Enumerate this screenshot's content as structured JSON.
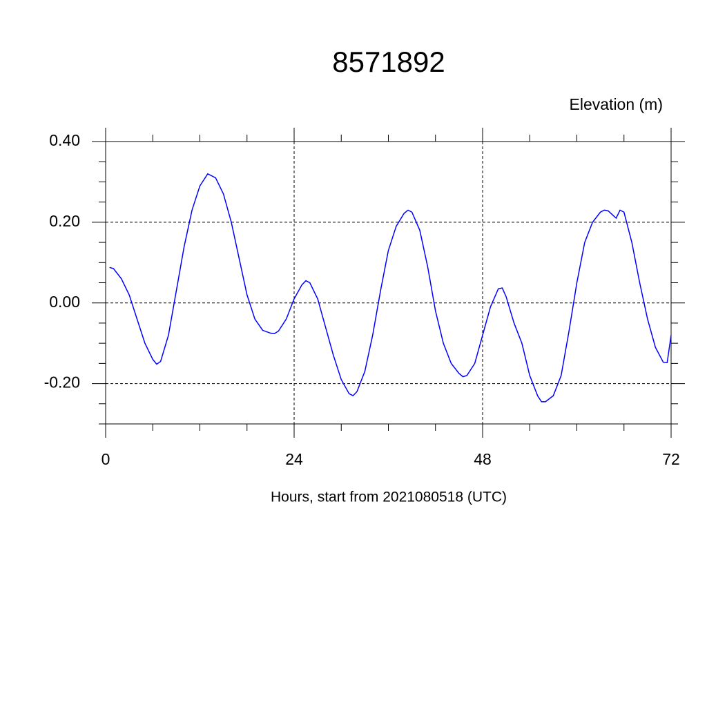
{
  "chart_data": {
    "type": "line",
    "title": "8571892",
    "subtitle": "Elevation (m)",
    "x_label": "Hours, start from 2021080518 (UTC)",
    "xlim": [
      0,
      72
    ],
    "ylim": [
      -0.3,
      0.4
    ],
    "xticks": [
      0,
      24,
      48,
      72
    ],
    "xminorticks": [
      6,
      12,
      18,
      30,
      36,
      42,
      54,
      60,
      66
    ],
    "yticks": [
      {
        "value": -0.2,
        "label": "-0.20"
      },
      {
        "value": 0,
        "label": "0.00"
      },
      {
        "value": 0.2,
        "label": "0.20"
      },
      {
        "value": 0.4,
        "label": "0.40"
      }
    ],
    "yminorticks": [
      -0.3,
      -0.25,
      -0.15,
      -0.1,
      -0.05,
      0.05,
      0.1,
      0.15,
      0.25,
      0.3,
      0.35
    ],
    "grid": true,
    "x": [
      0.5,
      1,
      2,
      3,
      4,
      5,
      6,
      6.5,
      7,
      8,
      9,
      10,
      11,
      12,
      13,
      14,
      15,
      16,
      17,
      18,
      19,
      20,
      21,
      21.5,
      22,
      23,
      24,
      25,
      25.5,
      26,
      27,
      28,
      29,
      30,
      31,
      31.5,
      32,
      33,
      34,
      35,
      36,
      37,
      38,
      38.5,
      39,
      40,
      41,
      42,
      43,
      44,
      45,
      45.5,
      46,
      47,
      48,
      49,
      50,
      50.5,
      51,
      52,
      53,
      54,
      55,
      55.5,
      56,
      57,
      58,
      59,
      60,
      61,
      62,
      63,
      63.5,
      64,
      65,
      65.5,
      66,
      67,
      68,
      69,
      70,
      71,
      71.5,
      72
    ],
    "series": [
      {
        "name": "Elevation",
        "color": "#0000ff",
        "values": [
          0.088,
          0.085,
          0.06,
          0.02,
          -0.04,
          -0.1,
          -0.14,
          -0.152,
          -0.145,
          -0.08,
          0.03,
          0.14,
          0.23,
          0.29,
          0.32,
          0.31,
          0.27,
          0.2,
          0.11,
          0.02,
          -0.04,
          -0.068,
          -0.075,
          -0.076,
          -0.07,
          -0.04,
          0.01,
          0.045,
          0.055,
          0.05,
          0.01,
          -0.06,
          -0.13,
          -0.19,
          -0.225,
          -0.23,
          -0.22,
          -0.17,
          -0.08,
          0.03,
          0.13,
          0.19,
          0.222,
          0.23,
          0.225,
          0.18,
          0.09,
          -0.02,
          -0.1,
          -0.15,
          -0.175,
          -0.183,
          -0.18,
          -0.15,
          -0.08,
          -0.01,
          0.035,
          0.037,
          0.015,
          -0.05,
          -0.1,
          -0.18,
          -0.23,
          -0.245,
          -0.245,
          -0.23,
          -0.18,
          -0.07,
          0.05,
          0.15,
          0.2,
          0.225,
          0.23,
          0.228,
          0.21,
          0.23,
          0.225,
          0.15,
          0.05,
          -0.04,
          -0.11,
          -0.147,
          -0.148,
          -0.08
        ]
      }
    ]
  }
}
